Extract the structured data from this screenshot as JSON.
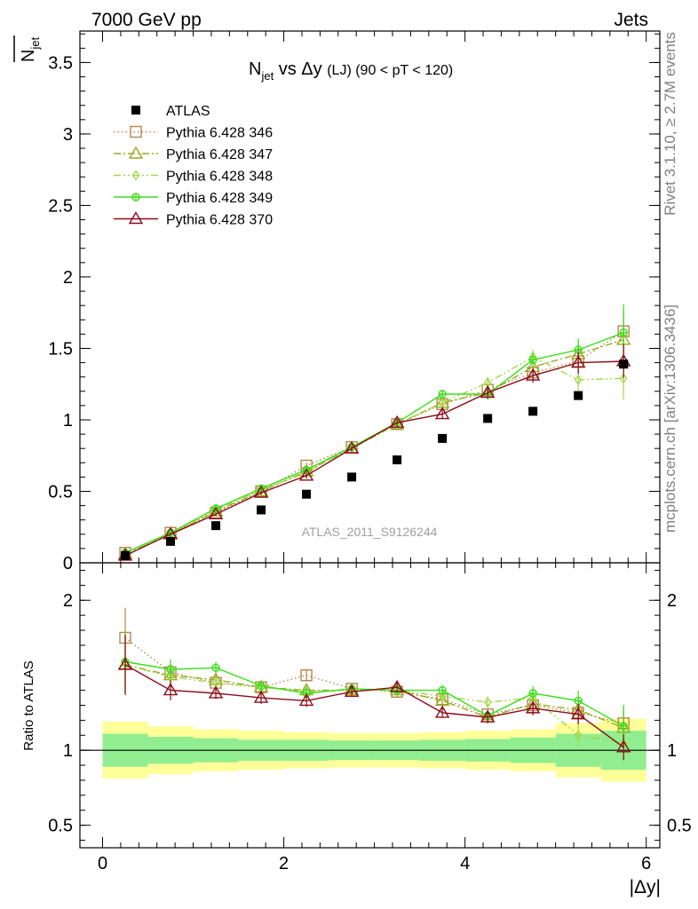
{
  "header": {
    "energy_label": "7000 GeV pp",
    "process_label": "Jets",
    "side_label_top": "Rivet 3.1.10, ≥ 2.7M events",
    "side_label_bottom": "mcplots.cern.ch [arXiv:1306.3436]"
  },
  "chart_data": [
    {
      "type": "scatter",
      "panel": "main",
      "title_main": "N",
      "title_sub": "jet",
      "title_rest": " vs Δy ",
      "title_small": "(LJ) (90 < pT < 120)",
      "ylabel": "N",
      "ylabel_sub": "jet",
      "watermark": "ATLAS_2011_S9126244",
      "xlim": [
        -0.25,
        6.15
      ],
      "ylim": [
        0,
        3.72
      ],
      "yticks": [
        0,
        0.5,
        1,
        1.5,
        2,
        2.5,
        3,
        3.5
      ],
      "ytick_labels": [
        "0",
        "0.5",
        "1",
        "1.5",
        "2",
        "2.5",
        "3",
        "3.5"
      ],
      "x": [
        0.25,
        0.75,
        1.25,
        1.75,
        2.25,
        2.75,
        3.25,
        3.75,
        4.25,
        4.75,
        5.25,
        5.75
      ],
      "series": [
        {
          "name": "ATLAS",
          "color": "#000000",
          "marker": "filled-square",
          "line": "none",
          "values": [
            0.05,
            0.15,
            0.26,
            0.37,
            0.48,
            0.6,
            0.72,
            0.87,
            1.01,
            1.06,
            1.17,
            1.39
          ],
          "errors": [
            0.005,
            0.005,
            0.006,
            0.007,
            0.008,
            0.009,
            0.01,
            0.012,
            0.013,
            0.015,
            0.02,
            0.03
          ]
        },
        {
          "name": "Pythia 6.428 346",
          "color": "#b8864b",
          "marker": "open-square",
          "line": "dotted",
          "values": [
            0.07,
            0.21,
            0.35,
            0.5,
            0.68,
            0.81,
            0.97,
            1.11,
            1.21,
            1.33,
            1.41,
            1.62
          ],
          "errors": [
            0.01,
            0.01,
            0.01,
            0.015,
            0.02,
            0.02,
            0.025,
            0.03,
            0.04,
            0.05,
            0.08,
            0.15
          ]
        },
        {
          "name": "Pythia 6.428 347",
          "color": "#9aaa1e",
          "marker": "open-triangle",
          "line": "dashdot",
          "values": [
            0.06,
            0.2,
            0.36,
            0.5,
            0.64,
            0.8,
            0.97,
            1.12,
            1.19,
            1.37,
            1.46,
            1.56
          ],
          "errors": [
            0.01,
            0.01,
            0.01,
            0.015,
            0.02,
            0.02,
            0.025,
            0.03,
            0.04,
            0.05,
            0.08,
            0.15
          ]
        },
        {
          "name": "Pythia 6.428 348",
          "color": "#a3d94a",
          "marker": "open-diamond",
          "line": "dashdotdot",
          "values": [
            0.06,
            0.2,
            0.37,
            0.51,
            0.63,
            0.81,
            0.97,
            1.12,
            1.26,
            1.44,
            1.28,
            1.29
          ],
          "errors": [
            0.01,
            0.01,
            0.01,
            0.015,
            0.02,
            0.02,
            0.025,
            0.03,
            0.04,
            0.05,
            0.08,
            0.15
          ]
        },
        {
          "name": "Pythia 6.428 349",
          "color": "#39e01a",
          "marker": "open-circle-cross",
          "line": "solid",
          "values": [
            0.07,
            0.21,
            0.38,
            0.52,
            0.65,
            0.81,
            0.98,
            1.18,
            1.18,
            1.42,
            1.49,
            1.61
          ],
          "errors": [
            0.01,
            0.01,
            0.01,
            0.015,
            0.02,
            0.02,
            0.025,
            0.03,
            0.04,
            0.05,
            0.08,
            0.2
          ]
        },
        {
          "name": "Pythia 6.428 370",
          "color": "#8b0a18",
          "marker": "open-triangle",
          "line": "solid",
          "values": [
            0.05,
            0.2,
            0.34,
            0.49,
            0.61,
            0.8,
            0.98,
            1.04,
            1.19,
            1.31,
            1.4,
            1.41
          ],
          "errors": [
            0.01,
            0.01,
            0.01,
            0.015,
            0.02,
            0.02,
            0.025,
            0.03,
            0.04,
            0.05,
            0.08,
            0.12
          ]
        }
      ]
    },
    {
      "type": "scatter",
      "panel": "ratio",
      "ylabel": "Ratio to ATLAS",
      "xlabel": "|Δy|",
      "xlim": [
        -0.25,
        6.15
      ],
      "ylim": [
        0.35,
        2.25
      ],
      "yticks": [
        0.5,
        1,
        2
      ],
      "ytick_labels": [
        "0.5",
        "1",
        "2"
      ],
      "xticks": [
        0,
        2,
        4,
        6
      ],
      "xtick_labels": [
        "0",
        "2",
        "4",
        "6"
      ],
      "bins": [
        [
          0,
          0.5
        ],
        [
          0.5,
          1
        ],
        [
          1,
          1.5
        ],
        [
          1.5,
          2
        ],
        [
          2,
          2.5
        ],
        [
          2.5,
          3
        ],
        [
          3,
          3.5
        ],
        [
          3.5,
          4
        ],
        [
          4,
          4.5
        ],
        [
          4.5,
          5
        ],
        [
          5,
          5.5
        ],
        [
          5.5,
          6
        ]
      ],
      "band_stat": [
        0.11,
        0.09,
        0.08,
        0.07,
        0.07,
        0.065,
        0.065,
        0.07,
        0.075,
        0.085,
        0.11,
        0.13
      ],
      "band_total": [
        0.19,
        0.16,
        0.14,
        0.13,
        0.12,
        0.115,
        0.115,
        0.12,
        0.13,
        0.14,
        0.18,
        0.21
      ],
      "band_stat_color": "#90ee90",
      "band_total_color": "#ffff99",
      "series": [
        {
          "name": "Pythia 6.428 346",
          "color": "#b8864b",
          "marker": "open-square",
          "line": "dotted",
          "values": [
            1.75,
            1.52,
            1.45,
            1.42,
            1.5,
            1.41,
            1.39,
            1.34,
            1.24,
            1.3,
            1.25,
            1.18
          ]
        },
        {
          "name": "Pythia 6.428 347",
          "color": "#9aaa1e",
          "marker": "open-triangle",
          "line": "dashdot",
          "values": [
            1.57,
            1.5,
            1.47,
            1.42,
            1.4,
            1.4,
            1.4,
            1.33,
            1.22,
            1.31,
            1.27,
            1.15
          ]
        },
        {
          "name": "Pythia 6.428 348",
          "color": "#a3d94a",
          "marker": "open-diamond",
          "line": "dashdotdot",
          "values": [
            1.57,
            1.49,
            1.45,
            1.42,
            1.39,
            1.4,
            1.4,
            1.36,
            1.32,
            1.35,
            1.1,
            1.05
          ]
        },
        {
          "name": "Pythia 6.428 349",
          "color": "#39e01a",
          "marker": "open-circle-cross",
          "line": "solid",
          "values": [
            1.59,
            1.54,
            1.55,
            1.43,
            1.38,
            1.41,
            1.4,
            1.4,
            1.23,
            1.38,
            1.33,
            1.16
          ]
        },
        {
          "name": "Pythia 6.428 370",
          "color": "#8b0a18",
          "marker": "open-triangle",
          "line": "solid",
          "values": [
            1.57,
            1.4,
            1.38,
            1.35,
            1.33,
            1.39,
            1.42,
            1.25,
            1.22,
            1.28,
            1.24,
            1.02
          ]
        }
      ]
    }
  ]
}
